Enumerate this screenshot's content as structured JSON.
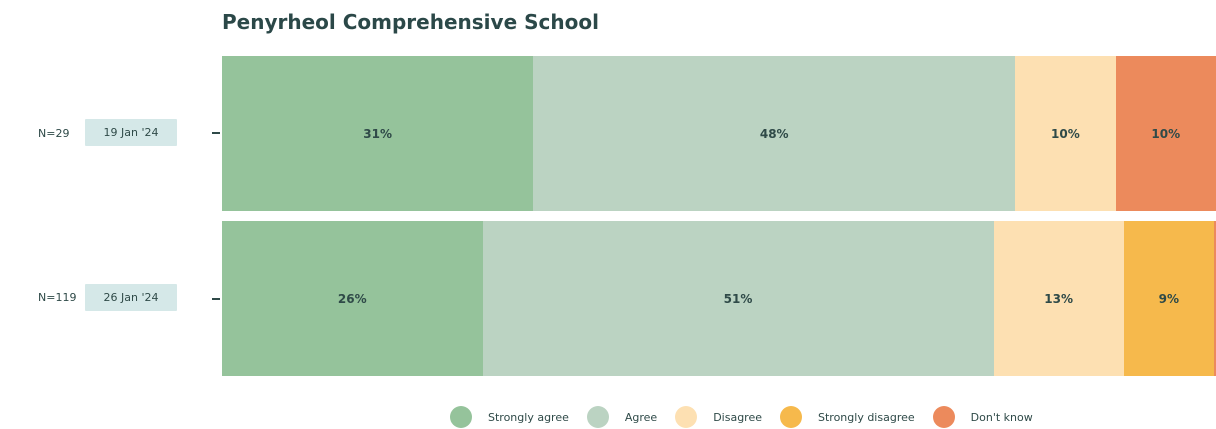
{
  "chart_data": {
    "type": "bar",
    "orientation": "horizontal",
    "stacked": true,
    "title": "Penyrheol Comprehensive School",
    "rows": [
      {
        "n_label": "N=29",
        "date": "19 Jan '24",
        "values": [
          31,
          48,
          10,
          0,
          10
        ],
        "labels": [
          "31%",
          "48%",
          "10%",
          "",
          "10%"
        ]
      },
      {
        "n_label": "N=119",
        "date": "26 Jan '24",
        "values": [
          26,
          51,
          13,
          9,
          0.2
        ],
        "labels": [
          "26%",
          "51%",
          "13%",
          "9%",
          ""
        ]
      }
    ],
    "series": [
      {
        "name": "Strongly agree",
        "color": "#95c39b"
      },
      {
        "name": "Agree",
        "color": "#bbd3c2"
      },
      {
        "name": "Disagree",
        "color": "#fde0b2"
      },
      {
        "name": "Strongly disagree",
        "color": "#f6b94c"
      },
      {
        "name": "Don't know",
        "color": "#ec8a5c"
      }
    ],
    "legend_position": "bottom",
    "grid": false
  }
}
